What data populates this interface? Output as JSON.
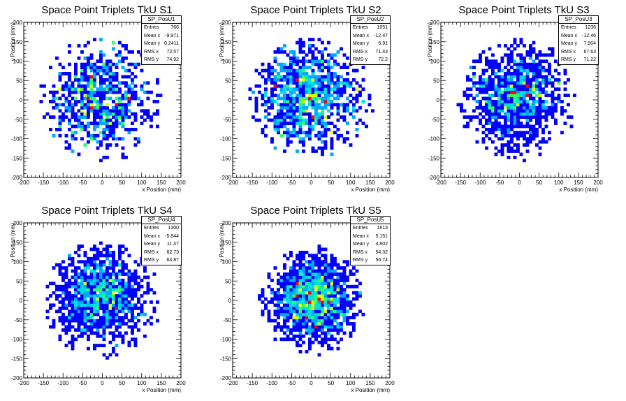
{
  "panels": [
    {
      "title": "Space Point Triplets TkU S1",
      "stats": {
        "name": "SP_PosU1",
        "rows": [
          [
            "Entries",
            "766"
          ],
          [
            "Mean x",
            "-9.971"
          ],
          [
            "Mean y",
            "-0.2411"
          ],
          [
            "RMS x",
            "72.57"
          ],
          [
            "RMS y",
            "74.92"
          ]
        ]
      }
    },
    {
      "title": "Space Point Triplets TkU S2",
      "stats": {
        "name": "SP_PosU2",
        "rows": [
          [
            "Entries",
            "1051"
          ],
          [
            "Mean x",
            "-12.47"
          ],
          [
            "Mean y",
            "6.91"
          ],
          [
            "RMS x",
            "71.43"
          ],
          [
            "RMS y",
            "72.2"
          ]
        ]
      }
    },
    {
      "title": "Space Point Triplets TkU S3",
      "stats": {
        "name": "SP_PosU3",
        "rows": [
          [
            "Entries",
            "1236"
          ],
          [
            "Mean x",
            "-12.46"
          ],
          [
            "Mean y",
            "7.904"
          ],
          [
            "RMS x",
            "67.63"
          ],
          [
            "RMS y",
            "71.22"
          ]
        ]
      }
    },
    {
      "title": "Space Point Triplets TkU S4",
      "stats": {
        "name": "SP_PosU4",
        "rows": [
          [
            "Entries",
            "1300"
          ],
          [
            "Mean x",
            "-5.844"
          ],
          [
            "Mean y",
            "11.47"
          ],
          [
            "RMS x",
            "62.73"
          ],
          [
            "RMS y",
            "64.87"
          ]
        ]
      }
    },
    {
      "title": "Space Point Triplets TkU S5",
      "stats": {
        "name": "SP_PosU5",
        "rows": [
          [
            "Entries",
            "1613"
          ],
          [
            "Mean x",
            "5.151"
          ],
          [
            "Mean y",
            "4.802"
          ],
          [
            "RMS x",
            "54.32"
          ],
          [
            "RMS y",
            "56.74"
          ]
        ]
      }
    }
  ],
  "chart_data": [
    {
      "type": "heatmap",
      "title": "Space Point Triplets TkU S1",
      "xlabel": "x Position (mm)",
      "ylabel": "y Position (mm)",
      "xlim": [
        -200,
        200
      ],
      "ylim": [
        -200,
        200
      ],
      "xticks": [
        -200,
        -150,
        -100,
        -50,
        0,
        50,
        100,
        150,
        200
      ],
      "yticks": [
        -200,
        -150,
        -100,
        -50,
        0,
        50,
        100,
        150,
        200
      ],
      "bin_size_mm": 8,
      "distribution": {
        "entries": 766,
        "mean_x": -9.971,
        "mean_y": -0.2411,
        "rms_x": 72.57,
        "rms_y": 74.92,
        "radius_mm": 160
      },
      "colors": [
        "#0000ff",
        "#00a8ff",
        "#00e0e0",
        "#30ff60",
        "#e0ff00",
        "#ff0000"
      ]
    },
    {
      "type": "heatmap",
      "title": "Space Point Triplets TkU S2",
      "xlabel": "x Position (mm)",
      "ylabel": "y Position (mm)",
      "xlim": [
        -200,
        200
      ],
      "ylim": [
        -200,
        200
      ],
      "xticks": [
        -200,
        -150,
        -100,
        -50,
        0,
        50,
        100,
        150,
        200
      ],
      "yticks": [
        -200,
        -150,
        -100,
        -50,
        0,
        50,
        100,
        150,
        200
      ],
      "bin_size_mm": 8,
      "distribution": {
        "entries": 1051,
        "mean_x": -12.47,
        "mean_y": 6.91,
        "rms_x": 71.43,
        "rms_y": 72.2,
        "radius_mm": 158
      },
      "colors": [
        "#0000ff",
        "#00a8ff",
        "#00e0e0",
        "#30ff60",
        "#e0ff00",
        "#ff0000"
      ]
    },
    {
      "type": "heatmap",
      "title": "Space Point Triplets TkU S3",
      "xlabel": "x Position (mm)",
      "ylabel": "y Position (mm)",
      "xlim": [
        -200,
        200
      ],
      "ylim": [
        -200,
        200
      ],
      "xticks": [
        -200,
        -150,
        -100,
        -50,
        0,
        50,
        100,
        150,
        200
      ],
      "yticks": [
        -200,
        -150,
        -100,
        -50,
        0,
        50,
        100,
        150,
        200
      ],
      "bin_size_mm": 8,
      "distribution": {
        "entries": 1236,
        "mean_x": -12.46,
        "mean_y": 7.904,
        "rms_x": 67.63,
        "rms_y": 71.22,
        "radius_mm": 155
      },
      "colors": [
        "#0000ff",
        "#00a8ff",
        "#00e0e0",
        "#30ff60",
        "#e0ff00",
        "#ff0000"
      ]
    },
    {
      "type": "heatmap",
      "title": "Space Point Triplets TkU S4",
      "xlabel": "x Position (mm)",
      "ylabel": "y Position (mm)",
      "xlim": [
        -200,
        200
      ],
      "ylim": [
        -200,
        200
      ],
      "xticks": [
        -200,
        -150,
        -100,
        -50,
        0,
        50,
        100,
        150,
        200
      ],
      "yticks": [
        -200,
        -150,
        -100,
        -50,
        0,
        50,
        100,
        150,
        200
      ],
      "bin_size_mm": 8,
      "distribution": {
        "entries": 1300,
        "mean_x": -5.844,
        "mean_y": 11.47,
        "rms_x": 62.73,
        "rms_y": 64.87,
        "radius_mm": 150
      },
      "colors": [
        "#0000ff",
        "#00a8ff",
        "#00e0e0",
        "#30ff60",
        "#e0ff00",
        "#ff0000"
      ]
    },
    {
      "type": "heatmap",
      "title": "Space Point Triplets TkU S5",
      "xlabel": "x Position (mm)",
      "ylabel": "y Position (mm)",
      "xlim": [
        -200,
        200
      ],
      "ylim": [
        -200,
        200
      ],
      "xticks": [
        -200,
        -150,
        -100,
        -50,
        0,
        50,
        100,
        150,
        200
      ],
      "yticks": [
        -200,
        -150,
        -100,
        -50,
        0,
        50,
        100,
        150,
        200
      ],
      "bin_size_mm": 8,
      "distribution": {
        "entries": 1613,
        "mean_x": 5.151,
        "mean_y": 4.802,
        "rms_x": 54.32,
        "rms_y": 56.74,
        "radius_mm": 140
      },
      "colors": [
        "#0000ff",
        "#00a8ff",
        "#00e0e0",
        "#30ff60",
        "#e0ff00",
        "#ff0000"
      ]
    }
  ]
}
